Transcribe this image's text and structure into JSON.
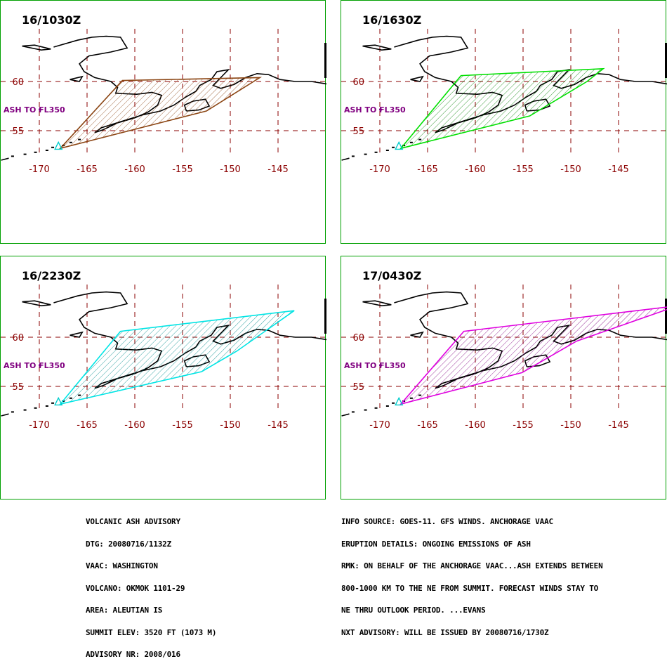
{
  "panels": [
    {
      "title": "16/1030Z",
      "color": "#8b4513",
      "poly": [
        [
          -167.8,
          53.2
        ],
        [
          -161.3,
          60.1
        ],
        [
          -146.9,
          60.4
        ],
        [
          -152.5,
          57.0
        ]
      ],
      "hatch": "#8b4513"
    },
    {
      "title": "16/1630Z",
      "color": "#00e000",
      "poly": [
        [
          -167.8,
          53.2
        ],
        [
          -161.5,
          60.6
        ],
        [
          -146.6,
          61.3
        ],
        [
          -148.3,
          60.0
        ],
        [
          -154.3,
          56.5
        ]
      ],
      "hatch": "#008000"
    },
    {
      "title": "16/2230Z",
      "color": "#00e5e5",
      "poly": [
        [
          -167.8,
          53.2
        ],
        [
          -161.5,
          60.6
        ],
        [
          -143.3,
          62.7
        ],
        [
          -149.3,
          58.6
        ],
        [
          -153.0,
          56.5
        ]
      ],
      "hatch": "#008b8b"
    },
    {
      "title": "17/0430Z",
      "color": "#e000e0",
      "poly": [
        [
          -167.8,
          53.2
        ],
        [
          -161.2,
          60.6
        ],
        [
          -138.8,
          63.2
        ],
        [
          -149.4,
          59.6
        ],
        [
          -155.1,
          56.4
        ]
      ],
      "hatch": "#800080"
    }
  ],
  "map": {
    "lon_ticks": [
      "-170",
      "-165",
      "-160",
      "-155",
      "-150",
      "-145"
    ],
    "lat_ticks": [
      "60",
      "55"
    ],
    "ash_label": "ASH TO FL350",
    "volcano": "OKMOK"
  },
  "advisory_left": [
    "VOLCANIC ASH ADVISORY",
    "DTG: 20080716/1132Z",
    "VAAC: WASHINGTON",
    "VOLCANO: OKMOK 1101-29",
    "AREA: ALEUTIAN IS",
    "SUMMIT ELEV: 3520 FT (1073 M)",
    "ADVISORY NR: 2008/016"
  ],
  "advisory_right": [
    "INFO SOURCE: GOES-11. GFS WINDS. ANCHORAGE VAAC",
    "ERUPTION DETAILS: ONGOING EMISSIONS OF ASH",
    "RMK: ON BEHALF OF THE ANCHORAGE VAAC...ASH EXTENDS BETWEEN",
    "800-1000 KM TO THE NE FROM SUMMIT. FORECAST WINDS STAY TO",
    "NE THRU OUTLOOK PERIOD. ...EVANS",
    "NXT ADVISORY: WILL BE ISSUED BY 20080716/1730Z"
  ]
}
